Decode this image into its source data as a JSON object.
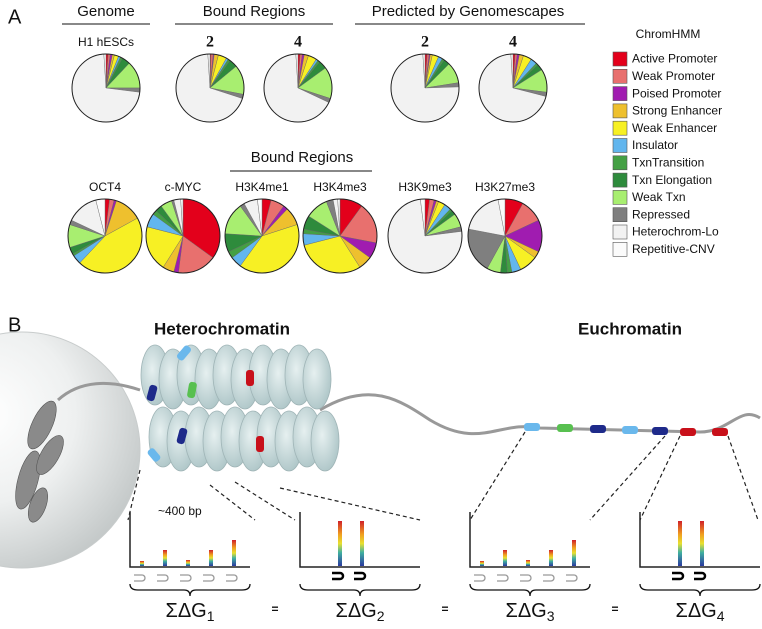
{
  "panel_labels": [
    "A",
    "B"
  ],
  "headers": [
    "Genome",
    "Bound Regions",
    "Predicted by Genomescapes",
    "Bound Regions"
  ],
  "legend": {
    "title": "ChromHMM",
    "categories": [
      "Active Promoter",
      "Weak Promoter",
      "Poised Promoter",
      "Strong Enhancer",
      "Weak Enhancer",
      "Insulator",
      "TxnTransition",
      "Txn Elongation",
      "Weak Txn",
      "Repressed",
      "Heterochrom-Lo",
      "Repetitive-CNV"
    ],
    "colors": [
      "#e3001b",
      "#e8706e",
      "#a01cb0",
      "#eec02e",
      "#f7f024",
      "#62b6ee",
      "#44a044",
      "#2e8b3c",
      "#a8ee70",
      "#7f7f7f",
      "#f2f2f2",
      "#fbfbfb"
    ]
  },
  "chart_data": [
    {
      "type": "pie",
      "title": "H1 hESCs",
      "values": [
        1,
        1,
        1,
        1,
        2,
        1,
        1,
        4,
        13,
        2,
        72,
        1
      ]
    },
    {
      "type": "pie",
      "title": "2",
      "values": [
        0.5,
        1,
        0.5,
        2,
        4,
        1,
        1,
        4,
        14,
        2,
        69,
        1
      ]
    },
    {
      "type": "pie",
      "title": "4",
      "values": [
        1,
        1,
        1,
        2,
        4,
        1,
        1,
        4,
        15,
        2,
        67,
        1
      ]
    },
    {
      "type": "pie",
      "title": "2",
      "values": [
        1,
        1,
        0.5,
        1,
        3,
        2,
        1,
        3,
        10,
        2,
        74.5,
        1
      ]
    },
    {
      "type": "pie",
      "title": "4",
      "values": [
        1,
        1,
        1,
        2,
        4,
        3,
        1,
        3,
        11,
        2,
        70,
        1
      ]
    },
    {
      "type": "pie",
      "title": "OCT4",
      "values": [
        2,
        2,
        1,
        12,
        45,
        4,
        1,
        3,
        10,
        2,
        14,
        4
      ]
    },
    {
      "type": "pie",
      "title": "c-MYC",
      "values": [
        35,
        17,
        2,
        5,
        20,
        6,
        2,
        3,
        5,
        1,
        3,
        1
      ]
    },
    {
      "type": "pie",
      "title": "H3K4me1",
      "values": [
        4,
        6,
        2,
        8,
        40,
        5,
        3,
        8,
        14,
        2,
        6,
        2
      ]
    },
    {
      "type": "pie",
      "title": "H3K4me3",
      "values": [
        10,
        18,
        7,
        6,
        30,
        5,
        2,
        6,
        10,
        3,
        2,
        1
      ]
    },
    {
      "type": "pie",
      "title": "H3K9me3",
      "values": [
        2,
        2,
        1,
        1,
        3,
        3,
        1,
        2,
        6,
        2,
        75,
        2
      ]
    },
    {
      "type": "pie",
      "title": "H3K27me3",
      "values": [
        8,
        10,
        14,
        3,
        8,
        4,
        2,
        3,
        6,
        20,
        19,
        3
      ]
    }
  ],
  "diagram": {
    "regions": [
      "Heterochromatin",
      "Euchromatin"
    ],
    "spacing": "~400 bp",
    "energies": [
      {
        "symbol": "ΣΔG",
        "subscript": "1"
      },
      {
        "symbol": "ΣΔG",
        "subscript": "2"
      },
      {
        "symbol": "ΣΔG",
        "subscript": "3"
      },
      {
        "symbol": "ΣΔG",
        "subscript": "4"
      }
    ],
    "equals": [
      "=",
      "=",
      "="
    ]
  }
}
